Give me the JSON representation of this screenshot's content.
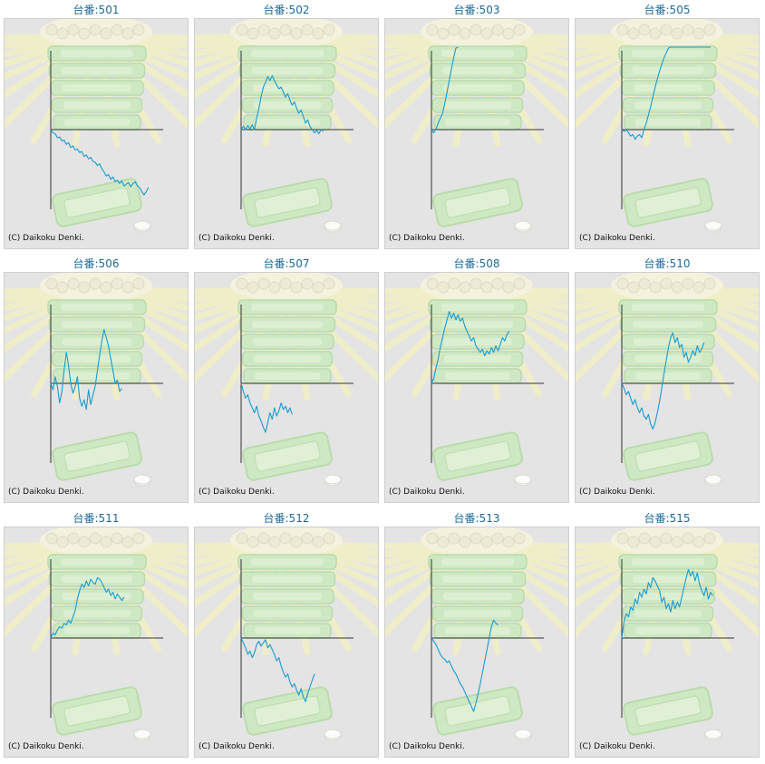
{
  "colors": {
    "background": "#e4e4e4",
    "line": "#1a9bd0",
    "axis": "#333333",
    "title": "#1f6b9a"
  },
  "copyright": "(C) Daikoku Denki.",
  "chart_data": [
    {
      "type": "line",
      "title": "台番:501",
      "values": [
        0,
        -4,
        -5,
        -10,
        -9,
        -14,
        -13,
        -18,
        -16,
        -22,
        -20,
        -25,
        -24,
        -28,
        -27,
        -33,
        -31,
        -36,
        -34,
        -39,
        -40,
        -44,
        -42,
        -48,
        -52,
        -57,
        -55,
        -61,
        -58,
        -64,
        -62,
        -66,
        -63,
        -69,
        -67,
        -65,
        -70,
        -66,
        -64,
        -69,
        -71,
        -76,
        -80,
        -76,
        -71
      ]
    },
    {
      "type": "line",
      "title": "台番:502",
      "values": [
        0,
        4,
        0,
        5,
        1,
        6,
        0,
        14,
        26,
        40,
        52,
        58,
        65,
        60,
        66,
        60,
        55,
        50,
        52,
        46,
        40,
        44,
        36,
        30,
        34,
        26,
        20,
        24,
        16,
        8,
        12,
        4,
        0,
        -4,
        -1,
        -5,
        0,
        -2
      ]
    },
    {
      "type": "line",
      "title": "台番:503",
      "values": [
        0,
        -4,
        0,
        8,
        14,
        20,
        32,
        46,
        60,
        74,
        88,
        100,
        112
      ]
    },
    {
      "type": "line",
      "title": "台番:505",
      "values": [
        0,
        -2,
        0,
        -4,
        -8,
        -6,
        -12,
        -8,
        -6,
        -10,
        0,
        8,
        18,
        28,
        40,
        52,
        62,
        72,
        80,
        88,
        94,
        100,
        106,
        112,
        118,
        124,
        130,
        120,
        126,
        130,
        124,
        130,
        128,
        125,
        122,
        126,
        130,
        127,
        124,
        122,
        120
      ]
    },
    {
      "type": "line",
      "title": "台番:506",
      "values": [
        0,
        -8,
        8,
        -4,
        -24,
        -10,
        16,
        38,
        22,
        0,
        -12,
        -4,
        8,
        -18,
        -28,
        -20,
        -32,
        -8,
        -26,
        -14,
        -4,
        16,
        34,
        52,
        66,
        56,
        46,
        30,
        16,
        0,
        4,
        -10,
        -6
      ]
    },
    {
      "type": "line",
      "title": "台番:507",
      "values": [
        0,
        -10,
        -18,
        -14,
        -24,
        -30,
        -36,
        -28,
        -40,
        -46,
        -54,
        -60,
        -48,
        -36,
        -44,
        -30,
        -40,
        -34,
        -24,
        -32,
        -28,
        -36,
        -30,
        -38
      ]
    },
    {
      "type": "line",
      "title": "台番:508",
      "values": [
        0,
        6,
        18,
        30,
        44,
        56,
        68,
        78,
        88,
        80,
        86,
        78,
        84,
        76,
        80,
        70,
        64,
        58,
        52,
        56,
        46,
        42,
        38,
        42,
        34,
        40,
        36,
        44,
        38,
        46,
        40,
        48,
        56,
        52,
        60,
        64
      ]
    },
    {
      "type": "line",
      "title": "台番:510",
      "values": [
        0,
        -6,
        -14,
        -10,
        -18,
        -26,
        -20,
        -30,
        -36,
        -30,
        -40,
        -44,
        -38,
        -50,
        -56,
        -48,
        -36,
        -22,
        -6,
        12,
        28,
        44,
        56,
        62,
        50,
        56,
        44,
        48,
        32,
        38,
        26,
        32,
        40,
        34,
        46,
        38,
        42,
        50
      ]
    },
    {
      "type": "line",
      "title": "台番:511",
      "values": [
        0,
        6,
        4,
        10,
        14,
        12,
        18,
        16,
        22,
        18,
        26,
        34,
        48,
        58,
        66,
        62,
        70,
        64,
        72,
        68,
        66,
        74,
        72,
        68,
        62,
        56,
        60,
        52,
        56,
        48,
        54,
        50,
        46,
        50
      ]
    },
    {
      "type": "line",
      "title": "台番:512",
      "values": [
        0,
        -6,
        -12,
        -20,
        -16,
        -24,
        -18,
        -8,
        -4,
        -10,
        -6,
        -2,
        -12,
        -8,
        -14,
        -20,
        -28,
        -24,
        -34,
        -42,
        -48,
        -44,
        -54,
        -60,
        -56,
        -64,
        -70,
        -62,
        -72,
        -78,
        -68,
        -60,
        -52,
        -44
      ]
    },
    {
      "type": "line",
      "title": "台番:513",
      "values": [
        0,
        -4,
        -8,
        -14,
        -20,
        -24,
        -26,
        -30,
        -28,
        -34,
        -40,
        -44,
        -50,
        -56,
        -60,
        -66,
        -72,
        -78,
        -84,
        -90,
        -80,
        -68,
        -56,
        -42,
        -28,
        -14,
        0,
        14,
        22,
        18,
        16
      ]
    },
    {
      "type": "line",
      "title": "台番:515",
      "values": [
        0,
        20,
        30,
        26,
        38,
        34,
        48,
        42,
        56,
        50,
        60,
        54,
        68,
        62,
        74,
        70,
        64,
        58,
        44,
        50,
        36,
        42,
        32,
        46,
        36,
        44,
        38,
        50,
        62,
        74,
        84,
        76,
        82,
        70,
        80,
        66,
        58,
        52,
        62,
        48,
        56,
        52
      ]
    }
  ]
}
